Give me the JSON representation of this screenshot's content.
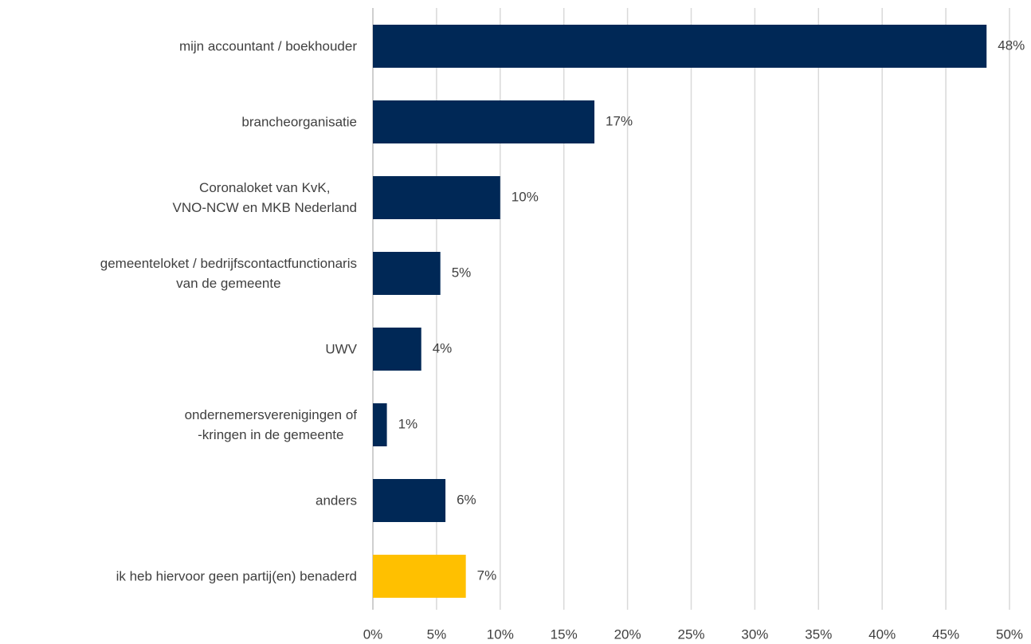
{
  "chart_data": {
    "type": "barh",
    "categories": [
      "mijn accountant / boekhouder",
      "brancheorganisatie",
      "Coronaloket van KvK,\nVNO-NCW en MKB Nederland",
      "gemeenteloket / bedrijfscontactfunctionaris\nvan de gemeente",
      "UWV",
      "ondernemersverenigingen of\n-kringen in de gemeente",
      "anders",
      "ik heb hiervoor geen partij(en) benaderd"
    ],
    "values": [
      48.2,
      17.4,
      10.0,
      5.3,
      3.8,
      1.1,
      5.7,
      7.3
    ],
    "value_labels": [
      "48%",
      "17%",
      "10%",
      "5%",
      "4%",
      "1%",
      "6%",
      "7%"
    ],
    "colors": [
      "#002856",
      "#002856",
      "#002856",
      "#002856",
      "#002856",
      "#002856",
      "#002856",
      "#ffc000"
    ],
    "xlim": [
      0,
      50
    ],
    "xticks": [
      {
        "value": 0,
        "label": "0%"
      },
      {
        "value": 5,
        "label": "5%"
      },
      {
        "value": 10,
        "label": "10%"
      },
      {
        "value": 15,
        "label": "15%"
      },
      {
        "value": 20,
        "label": "20%"
      },
      {
        "value": 25,
        "label": "25%"
      },
      {
        "value": 30,
        "label": "30%"
      },
      {
        "value": 35,
        "label": "35%"
      },
      {
        "value": 40,
        "label": "40%"
      },
      {
        "value": 45,
        "label": "45%"
      },
      {
        "value": 50,
        "label": "50%"
      }
    ],
    "grid": true
  }
}
